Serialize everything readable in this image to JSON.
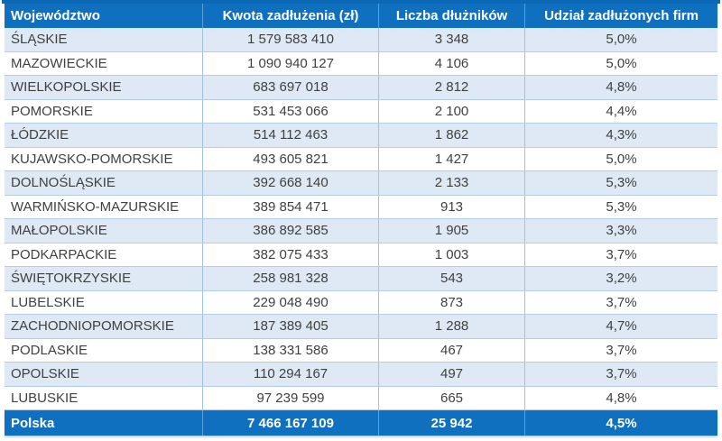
{
  "chart_data": {
    "type": "table",
    "title": "",
    "columns": [
      {
        "label": "Województwo",
        "align": "left"
      },
      {
        "label": "Kwota zadłużenia (zł)",
        "align": "center"
      },
      {
        "label": "Liczba dłużników",
        "align": "center"
      },
      {
        "label": "Udział zadłużonych firm",
        "align": "center"
      }
    ],
    "rows": [
      [
        "ŚLĄSKIE",
        "1 579 583 410",
        "3 348",
        "5,0%"
      ],
      [
        "MAZOWIECKIE",
        "1 090 940 127",
        "4 106",
        "5,0%"
      ],
      [
        "WIELKOPOLSKIE",
        "683 697 018",
        "2 812",
        "4,8%"
      ],
      [
        "POMORSKIE",
        "531 453 066",
        "2 100",
        "4,4%"
      ],
      [
        "ŁÓDZKIE",
        "514 112 463",
        "1 862",
        "4,3%"
      ],
      [
        "KUJAWSKO-POMORSKIE",
        "493 605 821",
        "1 427",
        "5,0%"
      ],
      [
        "DOLNOŚLĄSKIE",
        "392 668 140",
        "2 133",
        "5,3%"
      ],
      [
        "WARMIŃSKO-MAZURSKIE",
        "389 854 471",
        "913",
        "5,3%"
      ],
      [
        "MAŁOPOLSKIE",
        "386 892 585",
        "1 905",
        "3,3%"
      ],
      [
        "PODKARPACKIE",
        "382 075 433",
        "1 003",
        "3,7%"
      ],
      [
        "ŚWIĘTOKRZYSKIE",
        "258 981 328",
        "543",
        "3,2%"
      ],
      [
        "LUBELSKIE",
        "229 048 490",
        "873",
        "3,7%"
      ],
      [
        "ZACHODNIOPOMORSKIE",
        "187 389 405",
        "1 288",
        "4,7%"
      ],
      [
        "PODLASKIE",
        "138 331 586",
        "467",
        "3,7%"
      ],
      [
        "OPOLSKIE",
        "110 294 167",
        "497",
        "3,7%"
      ],
      [
        "LUBUSKIE",
        "97 239 599",
        "665",
        "4,8%"
      ]
    ],
    "total_row": [
      "Polska",
      "7 466 167 109",
      "25 942",
      "4,5%"
    ],
    "banding": "odd-rows-shaded",
    "legend_position": "none",
    "grid": "on"
  },
  "colors": {
    "header_bg": "#1070C0",
    "total_bg": "#1070C0",
    "top_border": "#0B68B4",
    "band_bg": "#DEE9F5",
    "row_border": "#B4CDE8",
    "divider": "#9CC2E5",
    "header_divider": "#5E9FD8",
    "body_text": "#404040",
    "header_text": "#FFFFFF"
  }
}
